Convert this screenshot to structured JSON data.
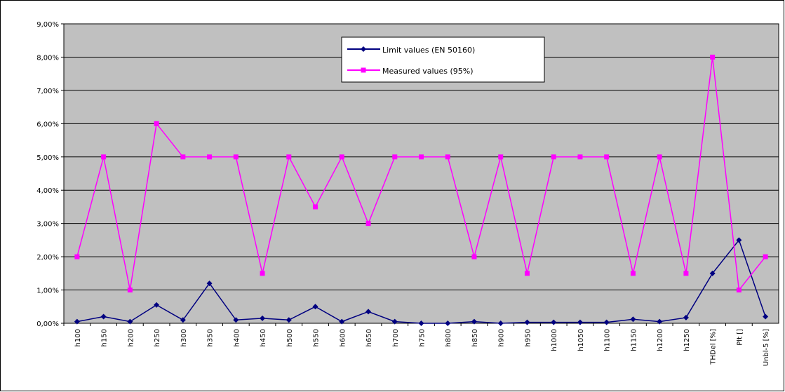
{
  "chart_data": {
    "type": "line",
    "categories": [
      "h100",
      "h150",
      "h200",
      "h250",
      "h300",
      "h350",
      "h400",
      "h450",
      "h500",
      "h550",
      "h600",
      "h650",
      "h700",
      "h750",
      "h800",
      "h850",
      "h900",
      "h950",
      "h1000",
      "h1050",
      "h1100",
      "h1150",
      "h1200",
      "h1250",
      "THDel [%]",
      "Plt []",
      "Unbl-5 [%]"
    ],
    "series": [
      {
        "name": "Limit values (EN 50160)",
        "color": "#000080",
        "marker": "diamond",
        "values": [
          0.05,
          0.2,
          0.05,
          0.55,
          0.1,
          1.2,
          0.1,
          0.15,
          0.1,
          0.5,
          0.05,
          0.35,
          0.05,
          0,
          0,
          0.05,
          0,
          0.03,
          0.03,
          0.03,
          0.03,
          0.12,
          0.05,
          0.17,
          1.5,
          2.5,
          0.2
        ]
      },
      {
        "name": "Measured values (95%)",
        "color": "#ff00ff",
        "marker": "square",
        "values": [
          2,
          5,
          1,
          6,
          5,
          5,
          5,
          1.5,
          5,
          3.5,
          5,
          3,
          5,
          5,
          5,
          2,
          5,
          1.5,
          5,
          5,
          5,
          1.5,
          5,
          1.5,
          8,
          1,
          2
        ]
      }
    ],
    "ylim": [
      0,
      9
    ],
    "yticks": [
      {
        "value": 0,
        "label": "0,00%"
      },
      {
        "value": 1,
        "label": "1,00%"
      },
      {
        "value": 2,
        "label": "2,00%"
      },
      {
        "value": 3,
        "label": "3,00%"
      },
      {
        "value": 4,
        "label": "4,00%"
      },
      {
        "value": 5,
        "label": "5,00%"
      },
      {
        "value": 6,
        "label": "6,00%"
      },
      {
        "value": 7,
        "label": "7,00%"
      },
      {
        "value": 8,
        "label": "8,00%"
      },
      {
        "value": 9,
        "label": "9,00%"
      }
    ],
    "grid": true,
    "plot_background": "#c0c0c0"
  }
}
